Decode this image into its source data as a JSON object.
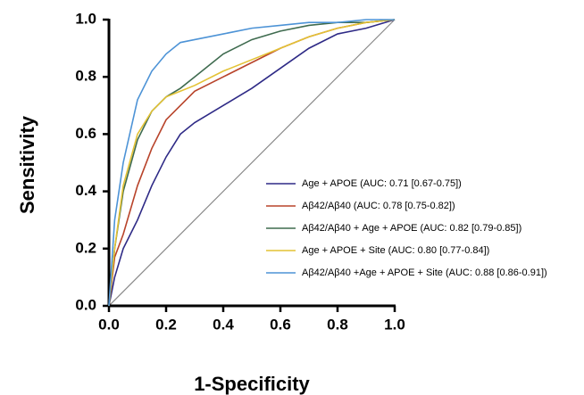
{
  "chart_data": {
    "type": "line",
    "x_label": "1-Specificity",
    "y_label": "Sensitivity",
    "x": [
      0,
      0.02,
      0.05,
      0.1,
      0.15,
      0.2,
      0.25,
      0.3,
      0.4,
      0.5,
      0.6,
      0.7,
      0.8,
      0.9,
      1
    ],
    "series": [
      {
        "name": "Age + APOE (AUC: 0.71 [0.67-0.75])",
        "color": "#2e2a86",
        "values": [
          0,
          0.1,
          0.2,
          0.3,
          0.42,
          0.52,
          0.6,
          0.64,
          0.7,
          0.76,
          0.83,
          0.9,
          0.95,
          0.97,
          1
        ]
      },
      {
        "name": "Aβ42/Aβ40 (AUC: 0.78 [0.75-0.82])",
        "color": "#b8432a",
        "values": [
          0,
          0.17,
          0.25,
          0.42,
          0.55,
          0.65,
          0.7,
          0.75,
          0.8,
          0.85,
          0.9,
          0.94,
          0.97,
          0.99,
          1
        ]
      },
      {
        "name": "Aβ42/Aβ40 + Age + APOE (AUC: 0.82 [0.79-0.85])",
        "color": "#3f6b4f",
        "values": [
          0,
          0.2,
          0.4,
          0.58,
          0.68,
          0.73,
          0.76,
          0.8,
          0.88,
          0.93,
          0.96,
          0.98,
          0.99,
          0.99,
          1
        ]
      },
      {
        "name": "Age + APOE  + Site (AUC: 0.80 [0.77-0.84])",
        "color": "#e3c234",
        "values": [
          0,
          0.2,
          0.42,
          0.6,
          0.68,
          0.73,
          0.75,
          0.77,
          0.82,
          0.86,
          0.9,
          0.94,
          0.97,
          0.99,
          1
        ]
      },
      {
        "name": "Aβ42/Aβ40 +Age + APOE + Site (AUC: 0.88 [0.86-0.91])",
        "color": "#4d93d6",
        "values": [
          0,
          0.3,
          0.5,
          0.72,
          0.82,
          0.88,
          0.92,
          0.93,
          0.95,
          0.97,
          0.98,
          0.99,
          0.99,
          1,
          1
        ]
      }
    ],
    "xlim": [
      0,
      1
    ],
    "ylim": [
      0,
      1
    ],
    "xticks": [
      {
        "value": 0,
        "label": "0.0"
      },
      0.2,
      0.4,
      0.6,
      0.8,
      {
        "value": 1,
        "label": "1.0"
      }
    ],
    "yticks": [
      {
        "value": 0,
        "label": "0.0"
      },
      0.2,
      0.4,
      0.6,
      0.8,
      {
        "value": 1,
        "label": "1.0"
      }
    ],
    "grid": false,
    "legend": "lower right"
  }
}
